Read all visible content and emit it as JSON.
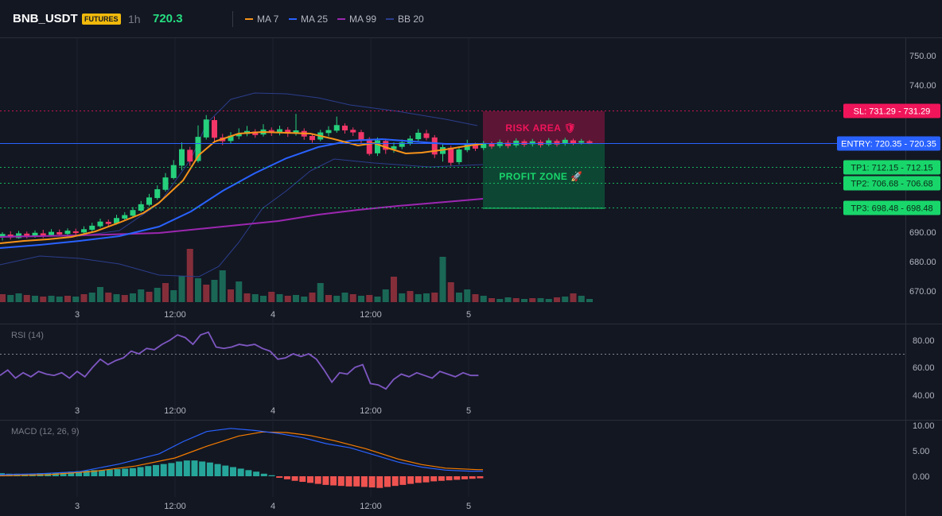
{
  "header": {
    "symbol": "BNB_USDT",
    "badge": "FUTURES",
    "interval": "1h",
    "last_price": "720.3",
    "legend": [
      {
        "label": "MA 7",
        "color": "#f7931a"
      },
      {
        "label": "MA 25",
        "color": "#2962ff"
      },
      {
        "label": "MA 99",
        "color": "#9c27b0"
      },
      {
        "label": "BB 20",
        "color": "#2b3e8c"
      }
    ]
  },
  "colors": {
    "up": "#26d07c",
    "down": "#f23667",
    "vol_up": "#1a6b5a",
    "vol_down": "#8a2f3c",
    "sl": "#f0155a",
    "entry": "#2962ff",
    "tp": "#19d66b",
    "rsi": "#7e57c2",
    "macd": "#2962ff",
    "signal": "#f57c00",
    "hist_pos": "#26a69a",
    "hist_neg": "#ef5350"
  },
  "main_chart": {
    "price_ticks": [
      "750.00",
      "740.00",
      "690.00",
      "680.00",
      "670.00"
    ],
    "x_ticks": [
      "3",
      "12:00",
      "4",
      "12:00",
      "5"
    ],
    "levels": [
      {
        "key": "sl",
        "label": "SL: 731.29 - 731.29",
        "value": 731.29
      },
      {
        "key": "entry",
        "label": "ENTRY: 720.35 - 720.35",
        "value": 720.35
      },
      {
        "key": "tp1",
        "label": "TP1: 712.15 - 712.15",
        "value": 712.15
      },
      {
        "key": "tp2",
        "label": "TP2: 706.68 - 706.68",
        "value": 706.68
      },
      {
        "key": "tp3",
        "label": "TP3: 698.48 - 698.48",
        "value": 698.48
      }
    ],
    "risk_area_label": "RISK AREA 🛡",
    "profit_zone_label": "PROFIT ZONE 🚀"
  },
  "rsi_panel": {
    "title": "RSI (14)",
    "ticks": [
      "80.00",
      "60.00",
      "40.00"
    ],
    "x_ticks": [
      "3",
      "12:00",
      "4",
      "12:00",
      "5"
    ]
  },
  "macd_panel": {
    "title": "MACD (12, 26, 9)",
    "ticks": [
      "10.00",
      "5.00",
      "0.00"
    ],
    "x_ticks": [
      "3",
      "12:00",
      "4",
      "12:00",
      "5"
    ]
  }
}
